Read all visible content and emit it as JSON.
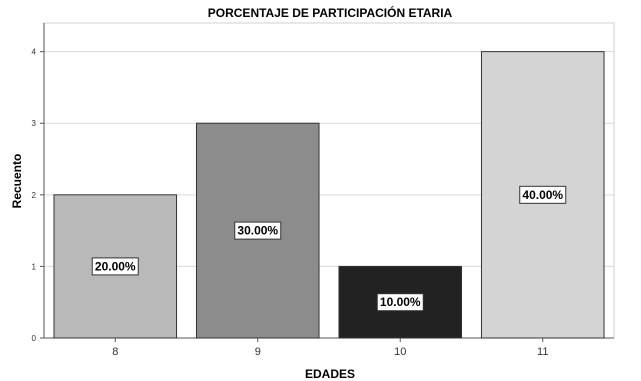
{
  "chart_data": {
    "type": "bar",
    "title": "PORCENTAJE DE PARTICIPACIÓN ETARIA",
    "xlabel": "EDADES",
    "ylabel": "Recuento",
    "categories": [
      "8",
      "9",
      "10",
      "11"
    ],
    "values": [
      2,
      3,
      1,
      4
    ],
    "data_labels": [
      "20.00%",
      "30.00%",
      "10.00%",
      "40.00%"
    ],
    "bar_colors": [
      "#b9b9b9",
      "#8c8c8c",
      "#222222",
      "#d4d4d4"
    ],
    "y_ticks": [
      "0",
      "1",
      "2",
      "3",
      "4"
    ],
    "ylim": [
      0,
      4.4
    ],
    "grid": true,
    "legend": "none"
  }
}
